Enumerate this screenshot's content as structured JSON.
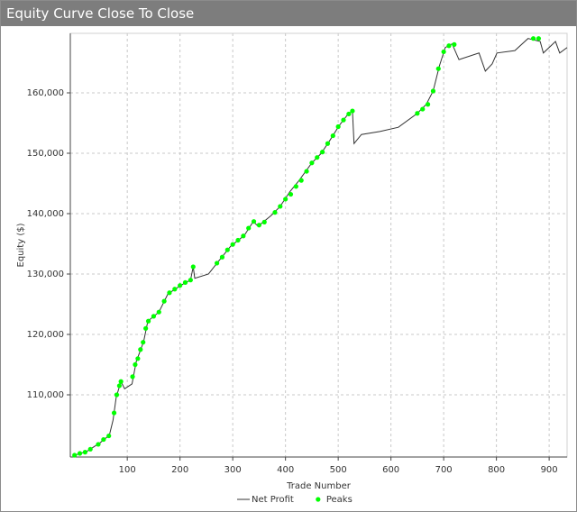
{
  "chart_data": {
    "type": "line",
    "title": "Equity Curve Close To Close",
    "x_label": "Trade Number",
    "y_label": "Equity ($)",
    "xlim": [
      -8,
      934
    ],
    "ylim": [
      99700,
      169850
    ],
    "xticks": [
      100,
      200,
      300,
      400,
      500,
      600,
      700,
      800,
      900
    ],
    "yticks": [
      {
        "value": 110000,
        "label": "110,000"
      },
      {
        "value": 120000,
        "label": "120,000"
      },
      {
        "value": 130000,
        "label": "130,000"
      },
      {
        "value": 140000,
        "label": "140,000"
      },
      {
        "value": 150000,
        "label": "150,000"
      },
      {
        "value": 160000,
        "label": "160,000"
      }
    ],
    "grid": true,
    "series": [
      {
        "name": "Net Profit",
        "color": "#333333",
        "kind": "line",
        "x": [
          0,
          23,
          49,
          66,
          73,
          79,
          88,
          95,
          109,
          117,
          131,
          139,
          160,
          177,
          203,
          220,
          225,
          228,
          254,
          271,
          296,
          322,
          339,
          348,
          373,
          390,
          408,
          425,
          450,
          467,
          484,
          502,
          518,
          527,
          530,
          544,
          579,
          614,
          650,
          667,
          680,
          692,
          703,
          716,
          729,
          767,
          779,
          792,
          801,
          835,
          860,
          883,
          889,
          912,
          920,
          934
        ],
        "values": [
          100000,
          100600,
          102100,
          103300,
          105800,
          109600,
          112200,
          111000,
          111800,
          115500,
          118800,
          122200,
          123700,
          126700,
          128200,
          129000,
          131200,
          129300,
          130000,
          131900,
          134600,
          136400,
          138700,
          137900,
          139700,
          141200,
          143600,
          145400,
          148400,
          149900,
          152100,
          154600,
          156400,
          157000,
          151600,
          153100,
          153600,
          154300,
          156600,
          158100,
          160300,
          164500,
          167500,
          168100,
          165500,
          166600,
          163600,
          164800,
          166600,
          167000,
          169000,
          168500,
          166600,
          168500,
          166600,
          167500
        ]
      },
      {
        "name": "Peaks",
        "color": "#00ff00",
        "kind": "scatter",
        "x": [
          0,
          10,
          20,
          30,
          45,
          55,
          65,
          75,
          80,
          85,
          88,
          110,
          115,
          120,
          125,
          130,
          135,
          140,
          150,
          160,
          170,
          180,
          190,
          200,
          210,
          220,
          225,
          270,
          280,
          290,
          300,
          310,
          320,
          330,
          340,
          350,
          360,
          380,
          390,
          400,
          410,
          420,
          430,
          440,
          450,
          460,
          470,
          480,
          490,
          500,
          510,
          520,
          527,
          650,
          660,
          670,
          680,
          690,
          700,
          710,
          720,
          870,
          880
        ],
        "values": [
          100000,
          100300,
          100500,
          101000,
          101800,
          102600,
          103200,
          107000,
          110000,
          111500,
          112200,
          113000,
          115000,
          116000,
          117500,
          118700,
          121000,
          122200,
          123000,
          123700,
          125500,
          126900,
          127500,
          128100,
          128600,
          129000,
          131200,
          131800,
          132800,
          134000,
          134900,
          135600,
          136300,
          137600,
          138700,
          138100,
          138600,
          140200,
          141200,
          142400,
          143200,
          144500,
          145500,
          147000,
          148400,
          149300,
          150200,
          151600,
          152900,
          154400,
          155500,
          156500,
          157000,
          156600,
          157300,
          158100,
          160300,
          164000,
          166800,
          167800,
          168000,
          169000,
          169000
        ]
      }
    ]
  }
}
